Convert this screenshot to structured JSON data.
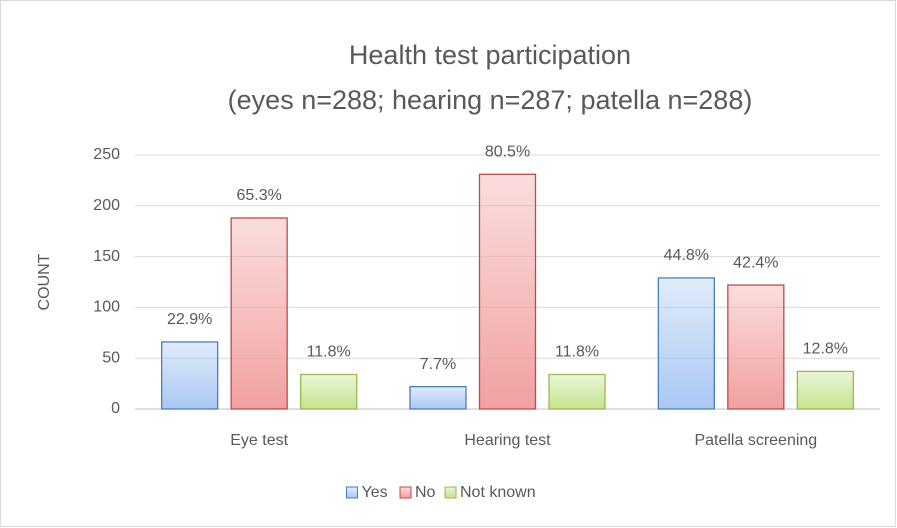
{
  "chart_data": {
    "type": "bar",
    "title": "Health test participation",
    "subtitle": "(eyes n=288; hearing n=287; patella n=288)",
    "ylabel": "COUNT",
    "categories": [
      "Eye test",
      "Hearing test",
      "Patella screening"
    ],
    "series": [
      {
        "name": "Yes",
        "color": "#a9c8f3",
        "edgecolor": "#4a7ebb",
        "values": [
          66,
          22,
          129
        ],
        "value_labels": [
          "22.9%",
          "7.7%",
          "44.8%"
        ]
      },
      {
        "name": "No",
        "color": "#f2a0a0",
        "edgecolor": "#be4b48",
        "values": [
          188,
          231,
          122
        ],
        "value_labels": [
          "65.3%",
          "80.5%",
          "42.4%"
        ]
      },
      {
        "name": "Not known",
        "color": "#c5e48e",
        "edgecolor": "#98b954",
        "values": [
          34,
          34,
          37
        ],
        "value_labels": [
          "11.8%",
          "11.8%",
          "12.8%"
        ]
      }
    ],
    "ylim": [
      0,
      250
    ],
    "yticks": [
      0,
      50,
      100,
      150,
      200,
      250
    ],
    "grid": true,
    "legend": "bottom"
  }
}
